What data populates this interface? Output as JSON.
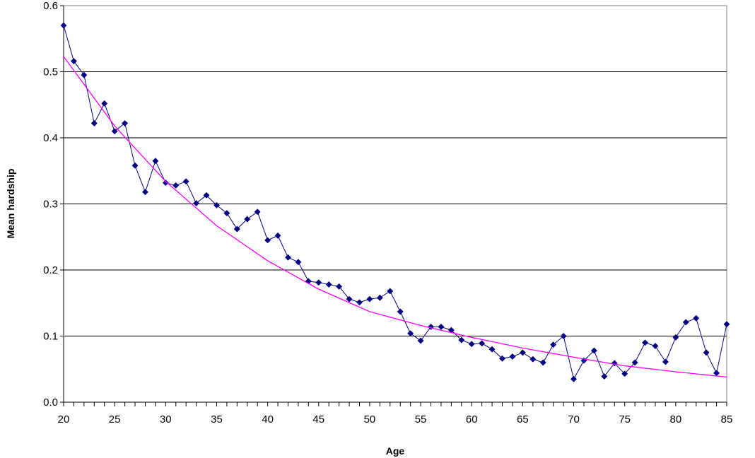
{
  "chart_data": {
    "type": "line",
    "xlabel": "Age",
    "ylabel": "Mean hardship",
    "xlim": [
      20,
      85
    ],
    "ylim": [
      0,
      0.6
    ],
    "x_ticks": [
      20,
      25,
      30,
      35,
      40,
      45,
      50,
      55,
      60,
      65,
      70,
      75,
      80,
      85
    ],
    "y_ticks": [
      "0.0",
      "0.1",
      "0.2",
      "0.3",
      "0.4",
      "0.5",
      "0.6"
    ],
    "grid": "horizontal",
    "series": [
      {
        "style": "line-with-diamond-markers",
        "color": "#000080",
        "x": [
          20,
          21,
          22,
          23,
          24,
          25,
          26,
          27,
          28,
          29,
          30,
          31,
          32,
          33,
          34,
          35,
          36,
          37,
          38,
          39,
          40,
          41,
          42,
          43,
          44,
          45,
          46,
          47,
          48,
          49,
          50,
          51,
          52,
          53,
          54,
          55,
          56,
          57,
          58,
          59,
          60,
          61,
          62,
          63,
          64,
          65,
          66,
          67,
          68,
          69,
          70,
          71,
          72,
          73,
          74,
          75,
          76,
          77,
          78,
          79,
          80,
          81,
          82,
          83,
          84,
          85
        ],
        "y": [
          0.57,
          0.516,
          0.495,
          0.422,
          0.452,
          0.41,
          0.422,
          0.358,
          0.318,
          0.365,
          0.332,
          0.328,
          0.334,
          0.301,
          0.313,
          0.298,
          0.286,
          0.262,
          0.277,
          0.288,
          0.245,
          0.252,
          0.219,
          0.212,
          0.183,
          0.181,
          0.178,
          0.175,
          0.156,
          0.151,
          0.156,
          0.158,
          0.168,
          0.137,
          0.104,
          0.093,
          0.114,
          0.114,
          0.109,
          0.094,
          0.088,
          0.089,
          0.08,
          0.066,
          0.069,
          0.075,
          0.065,
          0.06,
          0.087,
          0.1,
          0.035,
          0.063,
          0.078,
          0.039,
          0.059,
          0.043,
          0.06,
          0.09,
          0.085,
          0.061,
          0.098,
          0.121,
          0.127,
          0.075,
          0.044,
          0.118
        ]
      },
      {
        "style": "trend-line",
        "color": "#ff00ff",
        "x": [
          20,
          25,
          30,
          35,
          40,
          45,
          50,
          55,
          60,
          65,
          70,
          75,
          80,
          85
        ],
        "y": [
          0.523,
          0.418,
          0.334,
          0.267,
          0.214,
          0.171,
          0.137,
          0.116,
          0.098,
          0.082,
          0.068,
          0.055,
          0.046,
          0.038
        ]
      }
    ]
  }
}
